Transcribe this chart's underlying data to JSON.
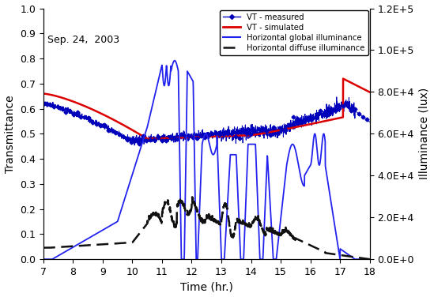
{
  "title": "Sep. 24,  2003",
  "xlabel": "Time (hr.)",
  "ylabel_left": "Transmittance",
  "ylabel_right": "Illuminance (lux)",
  "xlim": [
    7,
    18
  ],
  "ylim_left": [
    0.0,
    1.0
  ],
  "ylim_right": [
    0,
    120000
  ],
  "yticks_left": [
    0.0,
    0.1,
    0.2,
    0.3,
    0.4,
    0.5,
    0.6,
    0.7,
    0.8,
    0.9,
    1.0
  ],
  "yticks_right": [
    0,
    20000,
    40000,
    60000,
    80000,
    100000,
    120000
  ],
  "xticks": [
    7,
    8,
    9,
    10,
    11,
    12,
    13,
    14,
    15,
    16,
    17,
    18
  ],
  "background_color": "#ffffff"
}
